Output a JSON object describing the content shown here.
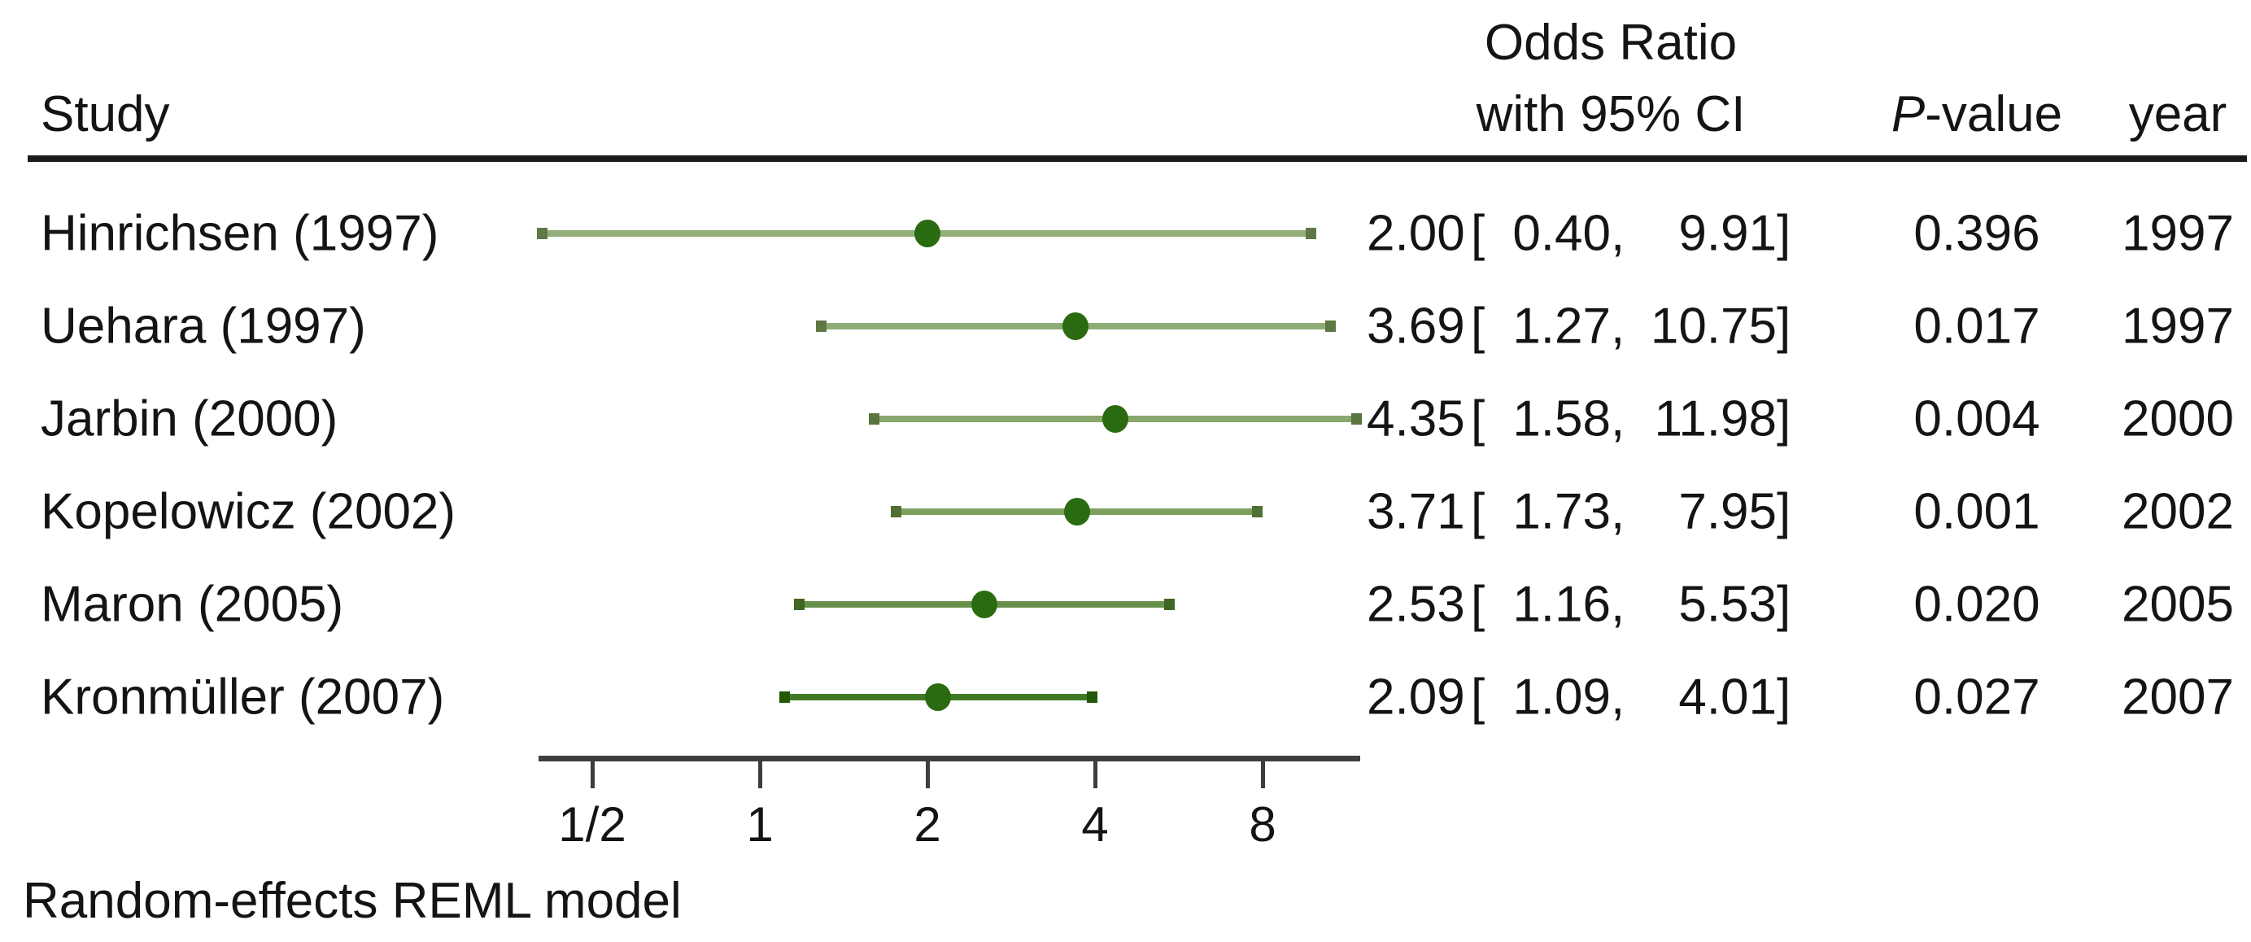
{
  "header": {
    "study": "Study",
    "or_line1": "Odds Ratio",
    "or_line2": "with 95% CI",
    "pvalue_italic": "P",
    "pvalue_rest": "-value",
    "year": "year"
  },
  "footer": {
    "model_label": "Random-effects REML model"
  },
  "colors": {
    "marker": "#2a6a10",
    "axis": "#3e3e3e",
    "rule": "#1a1a1a",
    "text": "#141414"
  },
  "chart_data": {
    "type": "forest",
    "x_scale": "log2",
    "x_range": [
      0.4,
      11.98
    ],
    "x_ticks": [
      {
        "label": "1/2",
        "value": 0.5
      },
      {
        "label": "1",
        "value": 1
      },
      {
        "label": "2",
        "value": 2
      },
      {
        "label": "4",
        "value": 4
      },
      {
        "label": "8",
        "value": 8
      }
    ],
    "studies": [
      {
        "label": "Hinrichsen (1997)",
        "or": 2.0,
        "lower": 0.4,
        "upper": 9.91,
        "or_text": "2.00",
        "lower_text": "0.40",
        "upper_text": "9.91",
        "pvalue": "0.396",
        "year": "1997",
        "line_color": "#93ae79"
      },
      {
        "label": "Uehara (1997)",
        "or": 3.69,
        "lower": 1.27,
        "upper": 10.75,
        "or_text": "3.69",
        "lower_text": "1.27",
        "upper_text": "10.75",
        "pvalue": "0.017",
        "year": "1997",
        "line_color": "#90ac75"
      },
      {
        "label": "Jarbin (2000)",
        "or": 4.35,
        "lower": 1.58,
        "upper": 11.98,
        "or_text": "4.35",
        "lower_text": "1.58",
        "upper_text": "11.98",
        "pvalue": "0.004",
        "year": "2000",
        "line_color": "#8aa76e"
      },
      {
        "label": "Kopelowicz (2002)",
        "or": 3.71,
        "lower": 1.73,
        "upper": 7.95,
        "or_text": "3.71",
        "lower_text": "1.73",
        "upper_text": "7.95",
        "pvalue": "0.001",
        "year": "2002",
        "line_color": "#7da05f"
      },
      {
        "label": "Maron (2005)",
        "or": 2.53,
        "lower": 1.16,
        "upper": 5.53,
        "or_text": "2.53",
        "lower_text": "1.16",
        "upper_text": "5.53",
        "pvalue": "0.020",
        "year": "2005",
        "line_color": "#68904a"
      },
      {
        "label": "Kronmüller (2007)",
        "or": 2.09,
        "lower": 1.09,
        "upper": 4.01,
        "or_text": "2.09",
        "lower_text": "1.09",
        "upper_text": "4.01",
        "pvalue": "0.027",
        "year": "2007",
        "line_color": "#417a24"
      }
    ],
    "footnote": "Random-effects REML model"
  }
}
